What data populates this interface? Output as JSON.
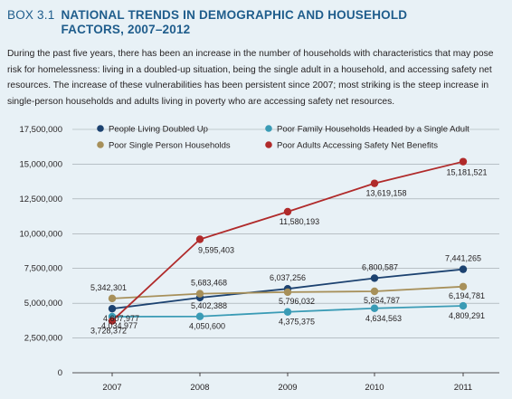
{
  "box": {
    "number": "BOX 3.1",
    "title": "NATIONAL TRENDS IN DEMOGRAPHIC AND HOUSEHOLD FACTORS, 2007–2012"
  },
  "intro_text": "During the past five years, there has been an increase in the number of households with characteristics that may pose risk for homelessness: living in a doubled-up situation, being the single adult in a household, and accessing safety net resources. The increase of these vulnerabilities has been persistent since 2007; most striking is the steep increase in single-person households and adults living in poverty who are accessing safety net resources.",
  "chart_data": {
    "type": "line",
    "x": [
      "2007",
      "2008",
      "2009",
      "2010",
      "2011"
    ],
    "ylim": [
      0,
      17500000
    ],
    "yticks": [
      0,
      2500000,
      5000000,
      7500000,
      10000000,
      12500000,
      15000000,
      17500000
    ],
    "ytick_labels": [
      "0",
      "2,500,000",
      "5,000,000",
      "7,500,000",
      "10,000,000",
      "12,500,000",
      "15,000,000",
      "17,500,000"
    ],
    "grid": true,
    "legend_position": "top",
    "series": [
      {
        "name": "People Living Doubled Up",
        "color": "#1c4270",
        "marker": "dot",
        "values": [
          4607977,
          5402388,
          6037256,
          6800587,
          7441265
        ],
        "labels": [
          "4,607,977",
          "5,402,388",
          "6,037,256",
          "6,800,587",
          "7,441,265"
        ]
      },
      {
        "name": "Poor Single Person Households",
        "color": "#a7905a",
        "marker": "dot",
        "values": [
          5342301,
          5683468,
          5796032,
          5854787,
          6194781
        ],
        "labels": [
          "5,342,301",
          "5,683,468",
          "5,796,032",
          "5,854,787",
          "6,194,781"
        ]
      },
      {
        "name": "Poor Family Households Headed by a Single Adult",
        "color": "#3a9bb5",
        "marker": "dot",
        "values": [
          4034977,
          4050600,
          4375375,
          4634563,
          4809291
        ],
        "labels": [
          "4,034,977",
          "4,050,600",
          "4,375,375",
          "4,634,563",
          "4,809,291"
        ]
      },
      {
        "name": "Poor Adults Accessing Safety Net Benefits",
        "color": "#b02a2a",
        "marker": "dot",
        "values": [
          3728372,
          9595403,
          11580193,
          13619158,
          15181521
        ],
        "labels": [
          "3,728,372",
          "9,595,403",
          "11,580,193",
          "13,619,158",
          "15,181,521"
        ]
      }
    ]
  }
}
